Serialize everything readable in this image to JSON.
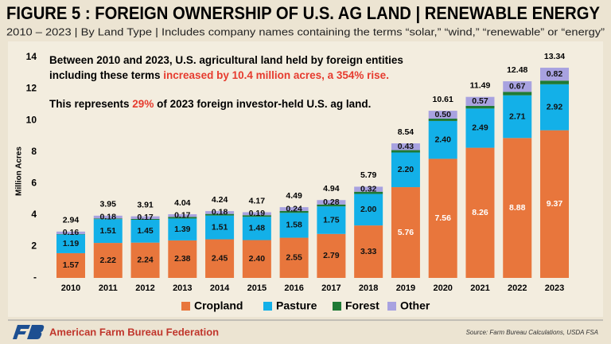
{
  "header": {
    "title": "FIGURE 5 : FOREIGN OWNERSHIP OF U.S. AG LAND | RENEWABLE ENERGY",
    "subtitle": "2010 – 2023 | By Land Type | Includes company names containing the terms “solar,” “wind,” “renewable” or “energy”"
  },
  "chart_data": {
    "type": "stacked_bar",
    "y_label": "Million Acres",
    "annotation": {
      "line1": [
        "Between 2010 and 2023, U.S. agricultural land held by foreign entities"
      ],
      "line2": [
        "including these terms ",
        "increased by 10.4 million acres, a 354% rise."
      ],
      "line3": [
        "This represents ",
        "29%",
        " of 2023 foreign investor-held U.S. ag land."
      ]
    },
    "categories": [
      "2010",
      "2011",
      "2012",
      "2013",
      "2014",
      "2015",
      "2016",
      "2017",
      "2018",
      "2019",
      "2020",
      "2021",
      "2022",
      "2023"
    ],
    "series": [
      {
        "name": "Cropland",
        "color": "#e8763c",
        "values": [
          1.57,
          2.22,
          2.24,
          2.38,
          2.45,
          2.4,
          2.55,
          2.79,
          3.33,
          5.76,
          7.56,
          8.26,
          8.88,
          9.37
        ],
        "value_labels": [
          "1.57",
          "2.22",
          "2.24",
          "2.38",
          "2.45",
          "2.40",
          "2.55",
          "2.79",
          "3.33",
          "5.76",
          "7.56",
          "8.26",
          "8.88",
          "9.37"
        ]
      },
      {
        "name": "Pasture",
        "color": "#13b0e8",
        "values": [
          1.19,
          1.51,
          1.45,
          1.39,
          1.51,
          1.48,
          1.58,
          1.75,
          2,
          2.2,
          2.4,
          2.49,
          2.71,
          2.92
        ],
        "value_labels": [
          "1.19",
          "1.51",
          "1.45",
          "1.39",
          "1.51",
          "1.48",
          "1.58",
          "1.75",
          "2.00",
          "2.20",
          "2.40",
          "2.49",
          "2.71",
          "2.92"
        ]
      },
      {
        "name": "Forest",
        "color": "#1f7a35",
        "values": [
          0.02,
          0.04,
          0.05,
          0.1,
          0.1,
          0.1,
          0.12,
          0.12,
          0.14,
          0.15,
          0.15,
          0.17,
          0.22,
          0.23
        ]
      },
      {
        "name": "Other",
        "color": "#a8a2e0",
        "values": [
          0.16,
          0.18,
          0.17,
          0.17,
          0.18,
          0.19,
          0.24,
          0.28,
          0.32,
          0.43,
          0.5,
          0.57,
          0.67,
          0.82
        ],
        "value_labels": [
          "0.16",
          "0.18",
          "0.17",
          "0.17",
          "0.18",
          "0.19",
          "0.24",
          "0.28",
          "0.32",
          "0.43",
          "0.50",
          "0.57",
          "0.67",
          "0.82"
        ]
      }
    ],
    "totals": [
      2.94,
      3.95,
      3.91,
      4.04,
      4.24,
      4.17,
      4.49,
      4.94,
      5.79,
      8.54,
      10.61,
      11.49,
      12.48,
      13.34
    ],
    "ylim": [
      0,
      14
    ],
    "yticks": [
      {
        "value": 0,
        "label": "-"
      },
      2,
      4,
      6,
      8,
      10,
      12,
      14
    ]
  },
  "footer": {
    "organization": "American Farm Bureau Federation",
    "source": "Source: Farm Bureau Calculations, USDA FSA"
  }
}
